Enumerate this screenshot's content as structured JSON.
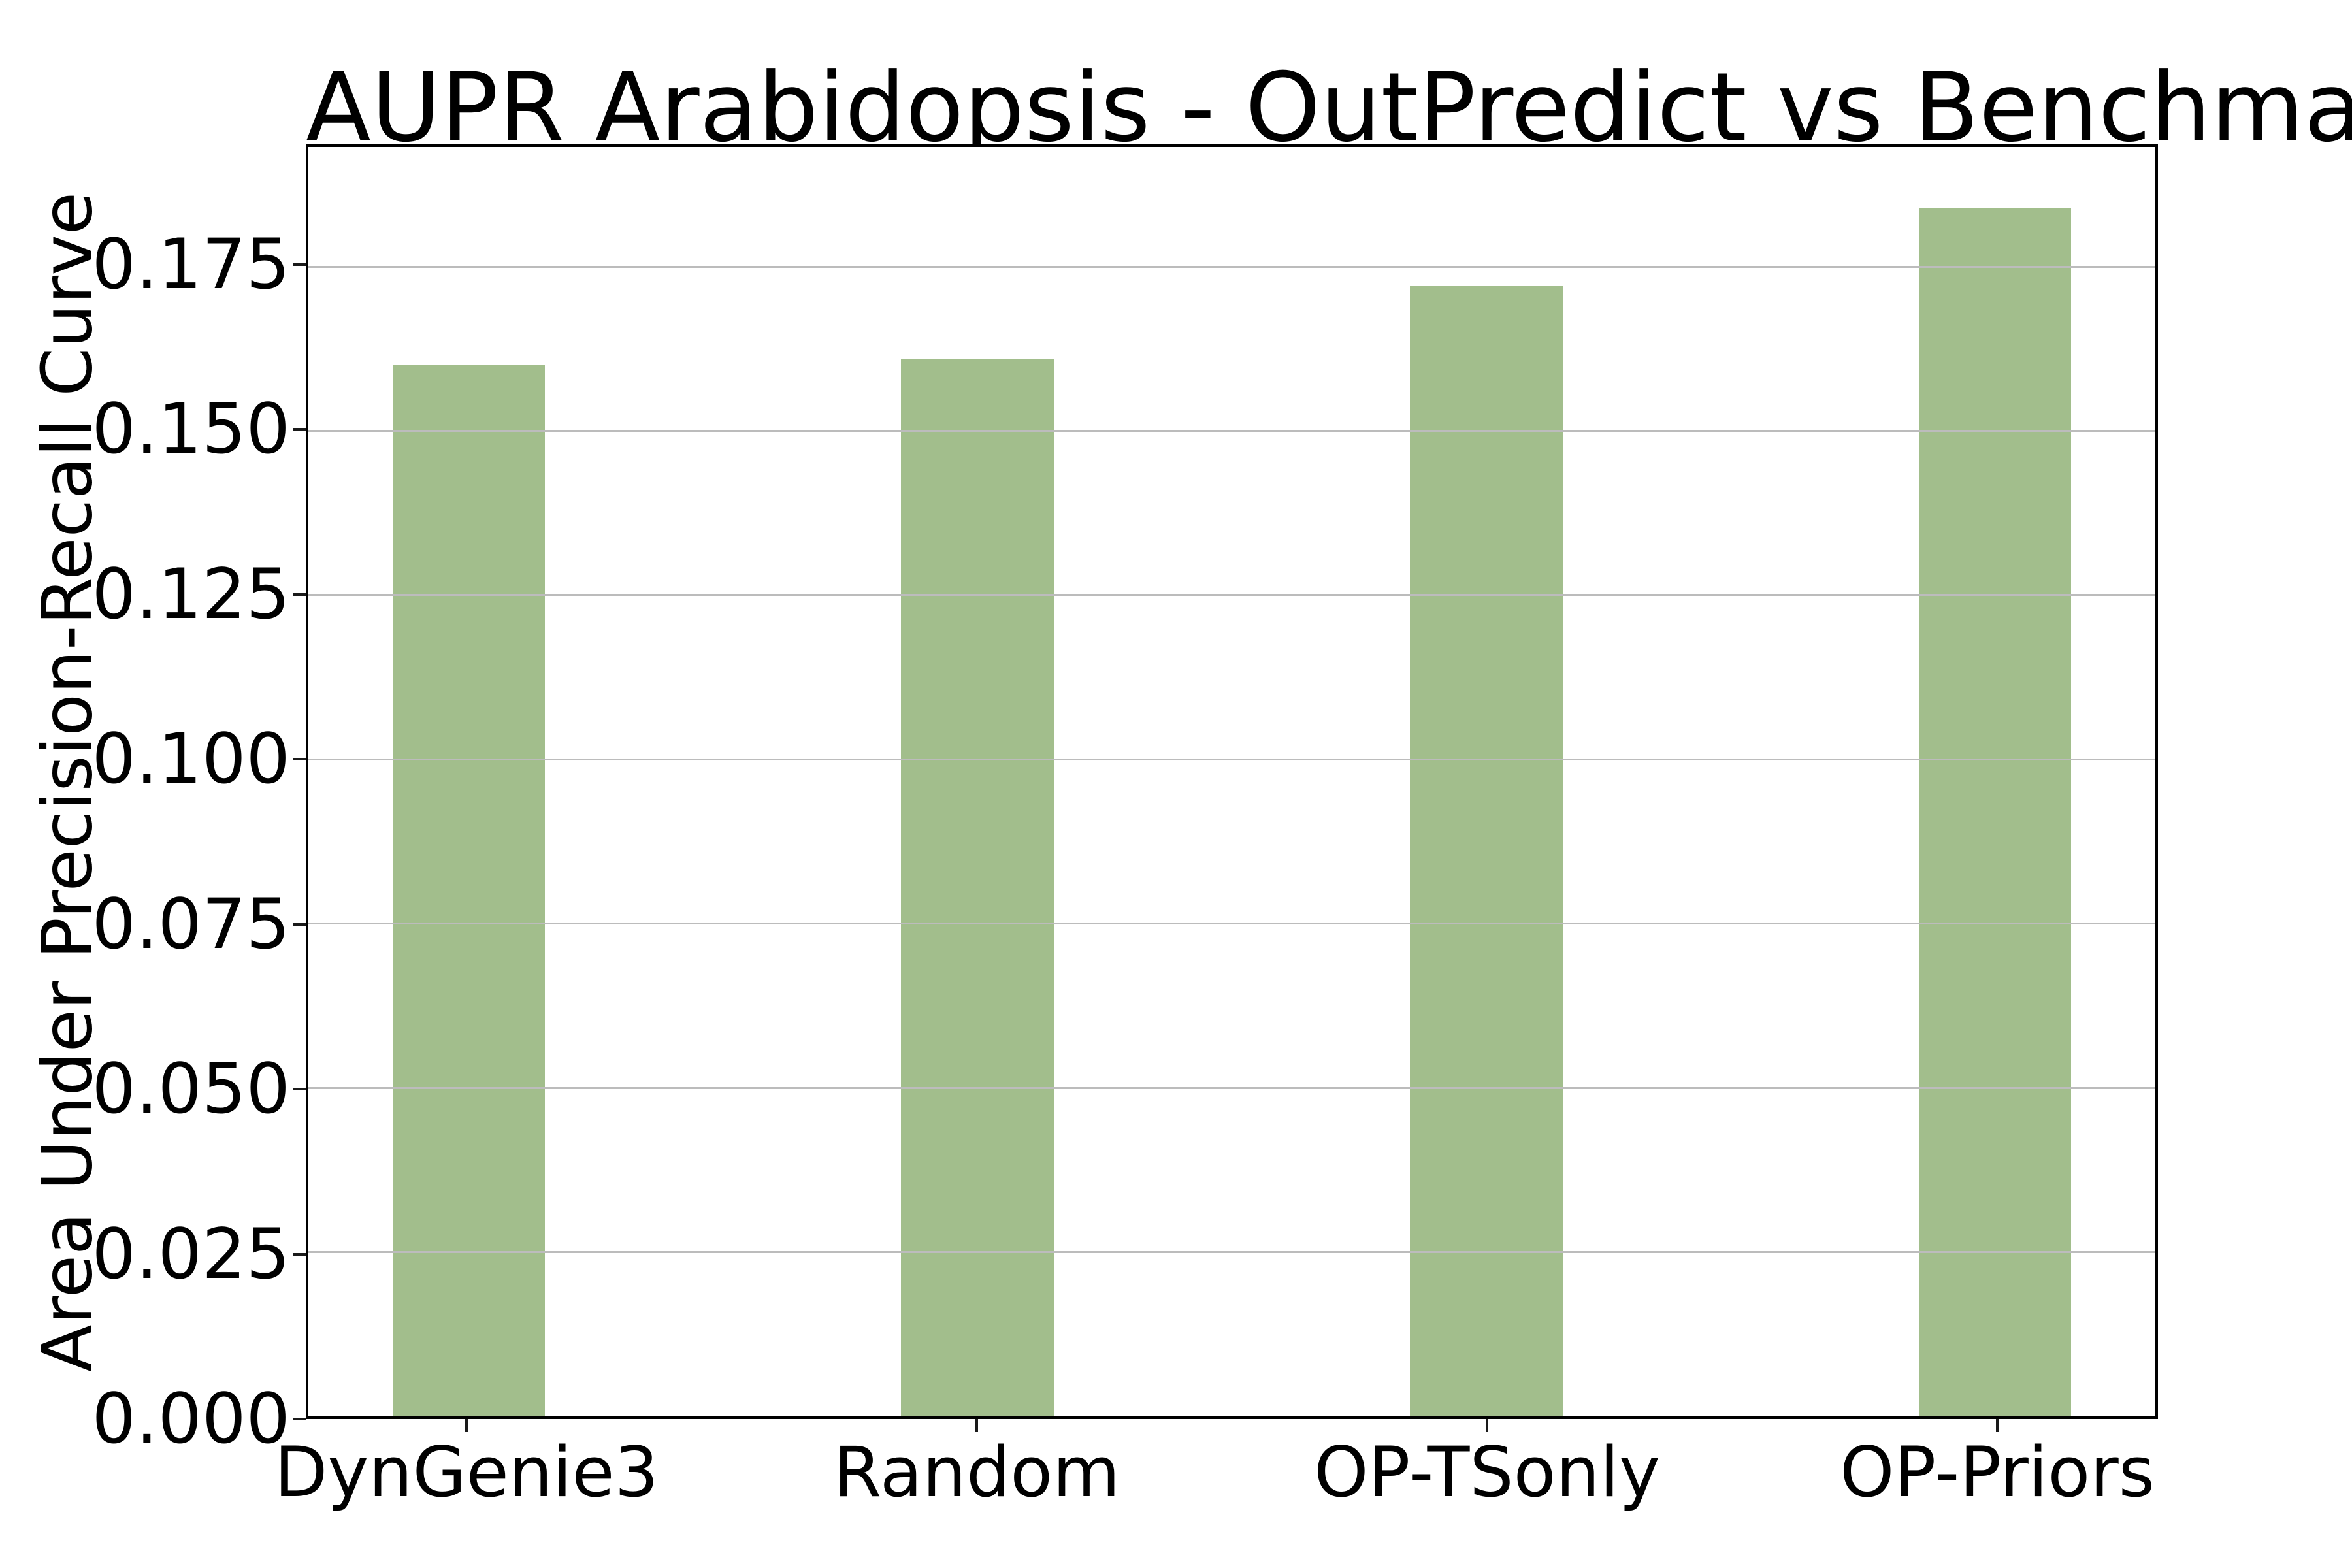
{
  "chart_data": {
    "type": "bar",
    "title": "AUPR Arabidopsis - OutPredict vs Benchmarks",
    "xlabel": "",
    "ylabel": "Area Under Precision-Recall Curve",
    "categories": [
      "DynGenie3",
      "Random",
      "OP-TSonly",
      "OP-Priors"
    ],
    "values": [
      0.16,
      0.161,
      0.172,
      0.184
    ],
    "ylim": [
      0,
      0.1932
    ],
    "yticks": [
      0,
      0.025,
      0.05,
      0.075,
      0.1,
      0.125,
      0.15,
      0.175
    ],
    "ytick_labels": [
      "0.000",
      "0.025",
      "0.050",
      "0.075",
      "0.100",
      "0.125",
      "0.150",
      "0.175"
    ],
    "grid": "y-only, drawn above bars",
    "legend": "none",
    "colors": {
      "bar_fill": "#a2be8c",
      "grid_line": "#bcbcbc",
      "spine": "#000000",
      "text": "#000000"
    },
    "layout": {
      "x_total_units": 3.63,
      "x_first_center_units": 0.315,
      "bar_width_units": 0.3
    }
  }
}
